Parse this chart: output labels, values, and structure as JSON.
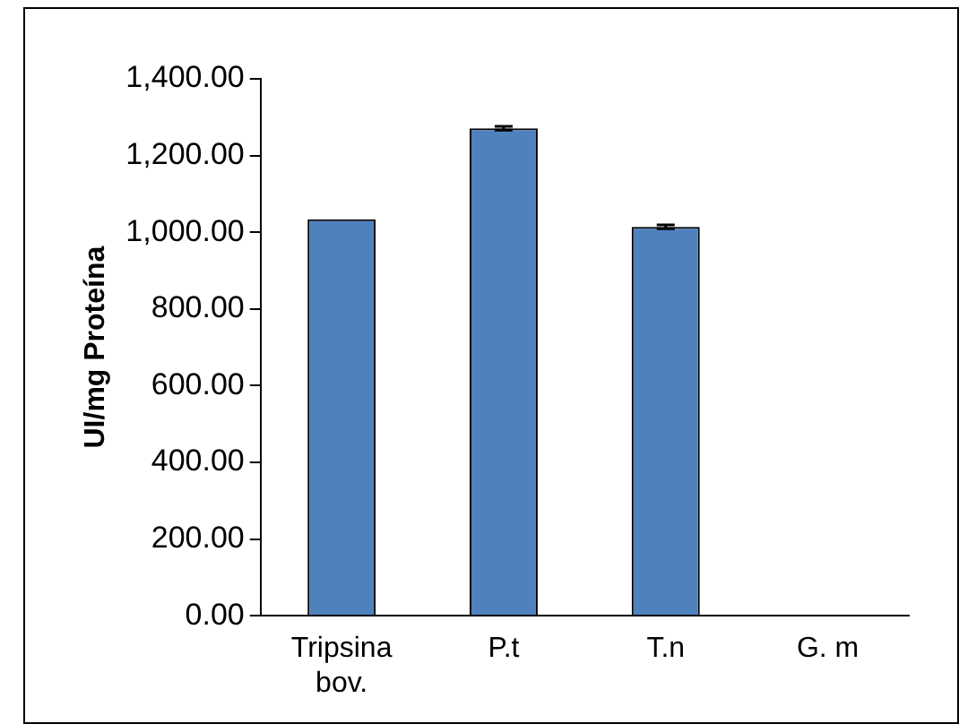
{
  "chart_data": {
    "type": "bar",
    "ylabel": "UI/mg Proteína",
    "categories": [
      "Tripsina bov.",
      "P.t",
      "T.n",
      "G. m"
    ],
    "values": [
      1034,
      1271,
      1014,
      0
    ],
    "errors": [
      null,
      5,
      5,
      null
    ],
    "color": "#4f81bd",
    "ylim": [
      0,
      1400
    ],
    "yticks": [
      {
        "value": 0,
        "label": "0.00"
      },
      {
        "value": 200,
        "label": "200.00"
      },
      {
        "value": 400,
        "label": "400.00"
      },
      {
        "value": 600,
        "label": "600.00"
      },
      {
        "value": 800,
        "label": "800.00"
      },
      {
        "value": 1000,
        "label": "1,000.00"
      },
      {
        "value": 1200,
        "label": "1,200.00"
      },
      {
        "value": 1400,
        "label": "1,400.00"
      }
    ],
    "grid": false,
    "legend": false
  }
}
